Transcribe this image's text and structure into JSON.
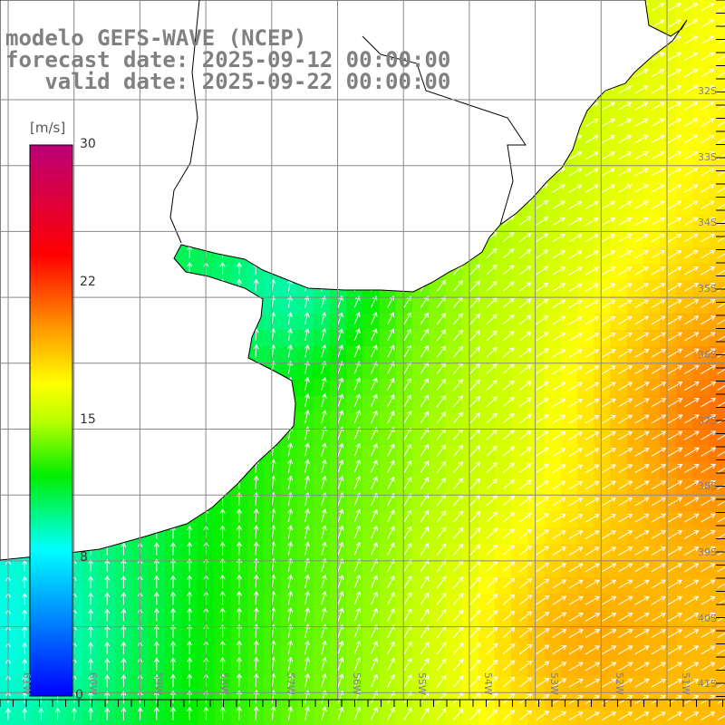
{
  "header": {
    "line1": "modelo GEFS-WAVE (NCEP)",
    "line2": "forecast date: 2025-09-12 00:00:00",
    "line3": "   valid date: 2025-09-22 00:00:00"
  },
  "colorbar": {
    "unit": "[m/s]",
    "labels": [
      "30",
      "22",
      "15",
      "8",
      "0"
    ],
    "stops": [
      {
        "v": 0,
        "color": "#0000ff"
      },
      {
        "v": 8,
        "color": "#00ffff"
      },
      {
        "v": 12,
        "color": "#00ee00"
      },
      {
        "v": 15,
        "color": "#bbff00"
      },
      {
        "v": 17,
        "color": "#ffff00"
      },
      {
        "v": 20,
        "color": "#ff9900"
      },
      {
        "v": 24,
        "color": "#ff0000"
      },
      {
        "v": 30,
        "color": "#bb0077"
      }
    ]
  },
  "axes": {
    "lat_labels": [
      "32S",
      "33S",
      "34S",
      "35S",
      "36S",
      "37S",
      "38S",
      "39S",
      "40S",
      "41S"
    ],
    "lon_labels": [
      "61W",
      "60W",
      "59W",
      "58W",
      "57W",
      "56W",
      "55W",
      "54W",
      "53W",
      "52W",
      "51W"
    ]
  }
}
